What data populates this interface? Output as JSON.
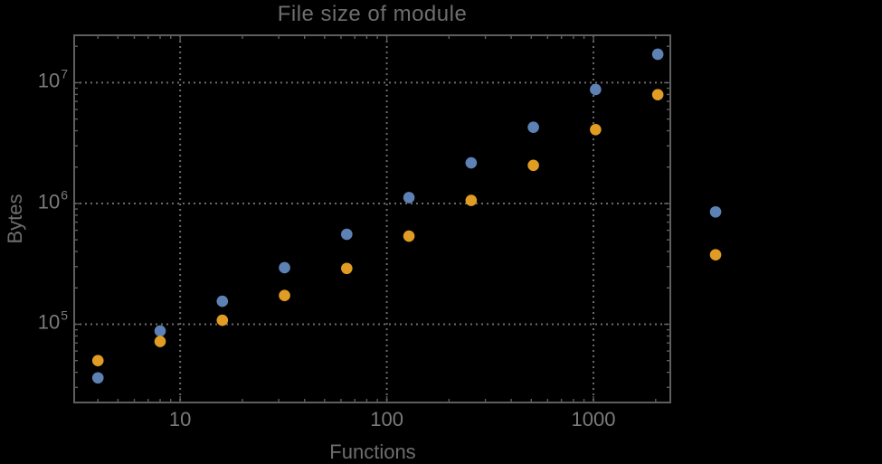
{
  "chart_data": {
    "type": "scatter",
    "title": "File size of module",
    "xlabel": "Functions",
    "ylabel": "Bytes",
    "x_scale": "log",
    "y_scale": "log",
    "grid": "dotted gridlines at decades, framed axes with inward log ticks, no legend",
    "legend": "none",
    "xlim": [
      3.07,
      2355
    ],
    "ylim": [
      22500,
      24700000
    ],
    "x": [
      4,
      8,
      16,
      32,
      64,
      128,
      256,
      512,
      1024,
      2048,
      3900
    ],
    "series": [
      {
        "name": "blue-series",
        "color": "#5E81B5",
        "values": [
          36000,
          88000,
          155000,
          294000,
          556000,
          1120000,
          2170000,
          4280000,
          8780000,
          17200000,
          852000
        ]
      },
      {
        "name": "orange-series",
        "color": "#E19C24",
        "values": [
          50000,
          72000,
          108000,
          173000,
          290000,
          537000,
          1060000,
          2070000,
          4090000,
          7960000,
          376000
        ]
      }
    ],
    "x_ticks": [
      {
        "value": 10,
        "label": "10"
      },
      {
        "value": 100,
        "label": "100"
      },
      {
        "value": 1000,
        "label": "1000"
      }
    ],
    "y_ticks": [
      {
        "value": 100000,
        "base": "10",
        "exp": "5"
      },
      {
        "value": 1000000,
        "base": "10",
        "exp": "6"
      },
      {
        "value": 10000000,
        "base": "10",
        "exp": "7"
      }
    ]
  },
  "colors": {
    "background": "#000000",
    "frame": "#5e5e5e",
    "grid": "#6b6b6b",
    "tick": "#5e5e5e",
    "tick_label_text": "#7b7b7b",
    "title_text": "#6e6e6e",
    "axis_label_text": "#6e6e6e"
  }
}
